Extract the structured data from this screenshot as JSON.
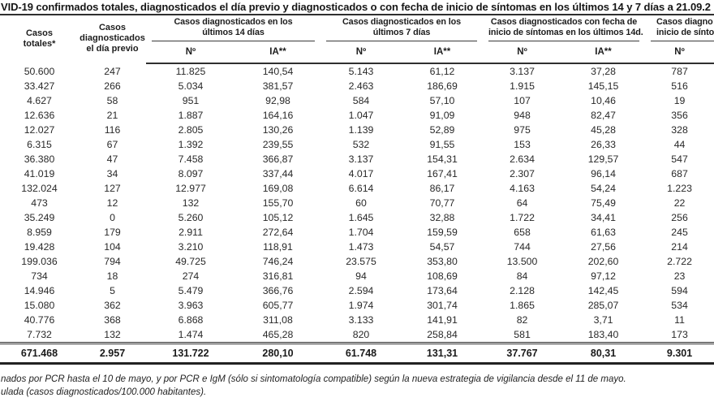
{
  "page": {
    "title": "VID-19 confirmados totales, diagnosticados el día previo y diagnosticados o con fecha de inicio de síntomas en los últimos 14 y 7 días a 21.09.2",
    "footnotes": [
      "nados por PCR hasta el 10 de mayo, y por PCR e IgM (sólo si sintomatología compatible) según la nueva estrategia de vigilancia desde el 11 de mayo.",
      "ulada (casos diagnosticados/100.000 habitantes)."
    ]
  },
  "table": {
    "headers": {
      "totales_line1": "Casos",
      "totales_line2": "totales*",
      "previo_line1": "Casos",
      "previo_line2": "diagnosticados",
      "previo_line3": "el día previo",
      "group_14d_line1": "Casos diagnosticados en los",
      "group_14d_line2": "últimos 14 días",
      "group_7d_line1": "Casos diagnosticados en los",
      "group_7d_line2": "últimos 7 días",
      "group_sint_line1": "Casos diagnosticados con fecha de",
      "group_sint_line2": "inicio de síntomas en los últimos 14d.",
      "group_cut_line1": "Casos diagno",
      "group_cut_line2": "inicio de sínto",
      "sub_n": "Nº",
      "sub_ia": "IA**"
    },
    "rows": [
      [
        "50.600",
        "247",
        "11.825",
        "140,54",
        "5.143",
        "61,12",
        "3.137",
        "37,28",
        "787"
      ],
      [
        "33.427",
        "266",
        "5.034",
        "381,57",
        "2.463",
        "186,69",
        "1.915",
        "145,15",
        "516"
      ],
      [
        "4.627",
        "58",
        "951",
        "92,98",
        "584",
        "57,10",
        "107",
        "10,46",
        "19"
      ],
      [
        "12.636",
        "21",
        "1.887",
        "164,16",
        "1.047",
        "91,09",
        "948",
        "82,47",
        "356"
      ],
      [
        "12.027",
        "116",
        "2.805",
        "130,26",
        "1.139",
        "52,89",
        "975",
        "45,28",
        "328"
      ],
      [
        "6.315",
        "67",
        "1.392",
        "239,55",
        "532",
        "91,55",
        "153",
        "26,33",
        "44"
      ],
      [
        "36.380",
        "47",
        "7.458",
        "366,87",
        "3.137",
        "154,31",
        "2.634",
        "129,57",
        "547"
      ],
      [
        "41.019",
        "34",
        "8.097",
        "337,44",
        "4.017",
        "167,41",
        "2.307",
        "96,14",
        "687"
      ],
      [
        "132.024",
        "127",
        "12.977",
        "169,08",
        "6.614",
        "86,17",
        "4.163",
        "54,24",
        "1.223"
      ],
      [
        "473",
        "12",
        "132",
        "155,70",
        "60",
        "70,77",
        "64",
        "75,49",
        "22"
      ],
      [
        "35.249",
        "0",
        "5.260",
        "105,12",
        "1.645",
        "32,88",
        "1.722",
        "34,41",
        "256"
      ],
      [
        "8.959",
        "179",
        "2.911",
        "272,64",
        "1.704",
        "159,59",
        "658",
        "61,63",
        "245"
      ],
      [
        "19.428",
        "104",
        "3.210",
        "118,91",
        "1.473",
        "54,57",
        "744",
        "27,56",
        "214"
      ],
      [
        "199.036",
        "794",
        "49.725",
        "746,24",
        "23.575",
        "353,80",
        "13.500",
        "202,60",
        "2.722"
      ],
      [
        "734",
        "18",
        "274",
        "316,81",
        "94",
        "108,69",
        "84",
        "97,12",
        "23"
      ],
      [
        "14.946",
        "5",
        "5.479",
        "366,76",
        "2.594",
        "173,64",
        "2.128",
        "142,45",
        "594"
      ],
      [
        "15.080",
        "362",
        "3.963",
        "605,77",
        "1.974",
        "301,74",
        "1.865",
        "285,07",
        "534"
      ],
      [
        "40.776",
        "368",
        "6.868",
        "311,08",
        "3.133",
        "141,91",
        "82",
        "3,71",
        "11"
      ],
      [
        "7.732",
        "132",
        "1.474",
        "465,28",
        "820",
        "258,84",
        "581",
        "183,40",
        "173"
      ]
    ],
    "totals": [
      "671.468",
      "2.957",
      "131.722",
      "280,10",
      "61.748",
      "131,31",
      "37.767",
      "80,31",
      "9.301"
    ]
  }
}
